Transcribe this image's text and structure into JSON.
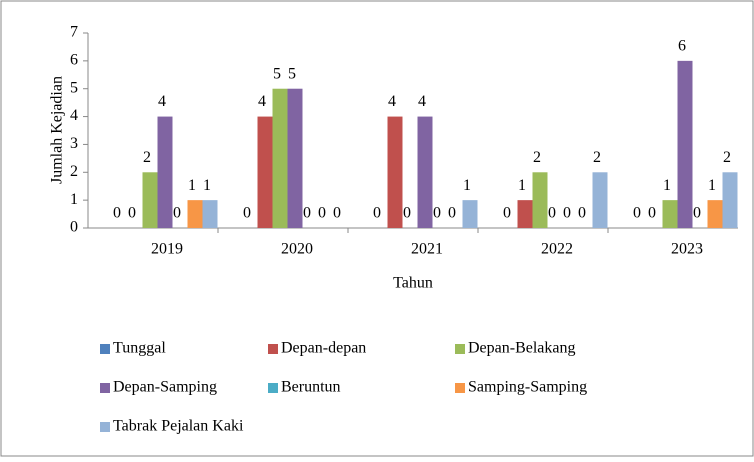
{
  "chart_data": {
    "type": "bar",
    "categories": [
      "2019",
      "2020",
      "2021",
      "2022",
      "2023"
    ],
    "series": [
      {
        "name": "Tunggal",
        "color": "#4f81bd",
        "values": [
          0,
          0,
          0,
          0,
          0
        ]
      },
      {
        "name": "Depan-depan",
        "color": "#c0504d",
        "values": [
          0,
          4,
          4,
          1,
          0
        ]
      },
      {
        "name": "Depan-Belakang",
        "color": "#9bbb59",
        "values": [
          2,
          5,
          0,
          2,
          1
        ]
      },
      {
        "name": "Depan-Samping",
        "color": "#8064a2",
        "values": [
          4,
          5,
          4,
          0,
          6
        ]
      },
      {
        "name": "Beruntun",
        "color": "#4bacc6",
        "values": [
          0,
          0,
          0,
          0,
          0
        ]
      },
      {
        "name": "Samping-Samping",
        "color": "#f79646",
        "values": [
          1,
          0,
          0,
          0,
          1
        ]
      },
      {
        "name": "Tabrak Pejalan Kaki",
        "color": "#95b3d7",
        "values": [
          1,
          0,
          1,
          2,
          2
        ]
      }
    ],
    "x_label": "Tahun",
    "y_label": "Jumlah Kejadian",
    "ylim": [
      0,
      7
    ],
    "yticks": [
      0,
      1,
      2,
      3,
      4,
      5,
      6,
      7
    ],
    "grid": false,
    "legend": "bottom"
  }
}
